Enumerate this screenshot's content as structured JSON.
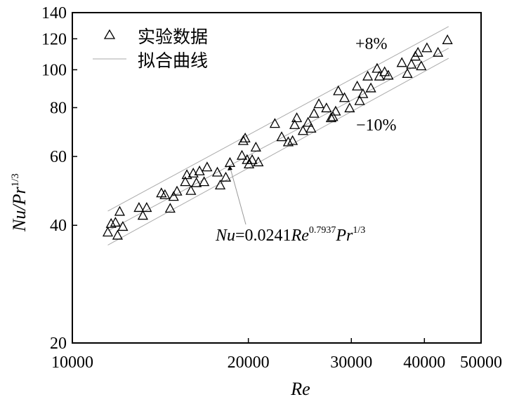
{
  "chart_data": {
    "type": "scatter",
    "xscale": "log",
    "yscale": "log",
    "xlim": [
      10000,
      50000
    ],
    "ylim": [
      20,
      140
    ],
    "xticks": [
      10000,
      20000,
      30000,
      40000,
      50000
    ],
    "xtick_labels": [
      "10000",
      "20000",
      "30000",
      "40000",
      "50000"
    ],
    "yticks": [
      20,
      40,
      60,
      80,
      100,
      120,
      140
    ],
    "ytick_labels": [
      "20",
      "40",
      "60",
      "80",
      "100",
      "120",
      "140"
    ],
    "xlabel": "Re",
    "ylabel": {
      "base": "Nu/Pr",
      "sup": "1/3"
    },
    "legend": {
      "placement": "top-left",
      "entries": [
        {
          "marker": "triangle",
          "label": "实验数据"
        },
        {
          "marker": "line",
          "label": "拟合曲线"
        }
      ]
    },
    "series": [
      {
        "name": "实验数据",
        "marker": "triangle",
        "points": [
          {
            "x": 11500,
            "y": 38.5
          },
          {
            "x": 11650,
            "y": 40.5
          },
          {
            "x": 11850,
            "y": 40.8
          },
          {
            "x": 11950,
            "y": 37.8
          },
          {
            "x": 12050,
            "y": 43.5
          },
          {
            "x": 12200,
            "y": 39.8
          },
          {
            "x": 13000,
            "y": 44.5
          },
          {
            "x": 13200,
            "y": 42.5
          },
          {
            "x": 13400,
            "y": 44.5
          },
          {
            "x": 14200,
            "y": 48.5
          },
          {
            "x": 14400,
            "y": 48.0
          },
          {
            "x": 14700,
            "y": 44.3
          },
          {
            "x": 14900,
            "y": 47.5
          },
          {
            "x": 15100,
            "y": 49.0
          },
          {
            "x": 15600,
            "y": 51.8
          },
          {
            "x": 15700,
            "y": 54.0
          },
          {
            "x": 15950,
            "y": 49.2
          },
          {
            "x": 16100,
            "y": 54.5
          },
          {
            "x": 16300,
            "y": 51.5
          },
          {
            "x": 16500,
            "y": 55.2
          },
          {
            "x": 16800,
            "y": 51.8
          },
          {
            "x": 17000,
            "y": 56.5
          },
          {
            "x": 17700,
            "y": 54.8
          },
          {
            "x": 17900,
            "y": 50.8
          },
          {
            "x": 18300,
            "y": 53.2
          },
          {
            "x": 18600,
            "y": 58.0
          },
          {
            "x": 19500,
            "y": 60.5
          },
          {
            "x": 19600,
            "y": 66.0
          },
          {
            "x": 19750,
            "y": 67.0
          },
          {
            "x": 19900,
            "y": 59.0
          },
          {
            "x": 20050,
            "y": 57.5
          },
          {
            "x": 20300,
            "y": 59.0
          },
          {
            "x": 20600,
            "y": 63.5
          },
          {
            "x": 20800,
            "y": 58.2
          },
          {
            "x": 22200,
            "y": 73.0
          },
          {
            "x": 22800,
            "y": 67.5
          },
          {
            "x": 23400,
            "y": 65.5
          },
          {
            "x": 23800,
            "y": 66.0
          },
          {
            "x": 24000,
            "y": 72.5
          },
          {
            "x": 24200,
            "y": 75.5
          },
          {
            "x": 24800,
            "y": 70.0
          },
          {
            "x": 25300,
            "y": 73.5
          },
          {
            "x": 25600,
            "y": 71.0
          },
          {
            "x": 25900,
            "y": 77.5
          },
          {
            "x": 26400,
            "y": 82.0
          },
          {
            "x": 27200,
            "y": 80.0
          },
          {
            "x": 27700,
            "y": 75.5
          },
          {
            "x": 27900,
            "y": 76.0
          },
          {
            "x": 28200,
            "y": 78.5
          },
          {
            "x": 28500,
            "y": 88.5
          },
          {
            "x": 29200,
            "y": 85.0
          },
          {
            "x": 29800,
            "y": 80.0
          },
          {
            "x": 30700,
            "y": 91.0
          },
          {
            "x": 31000,
            "y": 83.5
          },
          {
            "x": 31400,
            "y": 87.0
          },
          {
            "x": 32000,
            "y": 96.5
          },
          {
            "x": 32400,
            "y": 90.0
          },
          {
            "x": 33200,
            "y": 101.0
          },
          {
            "x": 33500,
            "y": 96.5
          },
          {
            "x": 34200,
            "y": 99.0
          },
          {
            "x": 34700,
            "y": 97.0
          },
          {
            "x": 36600,
            "y": 104.5
          },
          {
            "x": 37400,
            "y": 98.0
          },
          {
            "x": 38000,
            "y": 103.5
          },
          {
            "x": 38600,
            "y": 108.5
          },
          {
            "x": 39000,
            "y": 111.0
          },
          {
            "x": 39500,
            "y": 102.5
          },
          {
            "x": 40400,
            "y": 114.0
          },
          {
            "x": 42200,
            "y": 111.0
          },
          {
            "x": 43800,
            "y": 119.5
          }
        ]
      },
      {
        "name": "拟合曲线",
        "type": "line",
        "x": [
          11500,
          44000
        ],
        "y": [
          38.7,
          113.5
        ],
        "bands": [
          {
            "label": "+8%",
            "x": [
              11500,
              44000
            ],
            "y": [
              43.5,
              129.0
            ]
          },
          {
            "label": "−10%",
            "x": [
              11500,
              44000
            ],
            "y": [
              35.6,
              107.0
            ]
          }
        ]
      }
    ],
    "annotations": [
      {
        "text": "+8%"
      },
      {
        "text": "−10%"
      },
      {
        "base": "Nu",
        "eq": "=0.0241",
        "re": "Re",
        "exp1": "0.7937",
        "pr": "Pr",
        "exp2": "1/3"
      }
    ]
  }
}
